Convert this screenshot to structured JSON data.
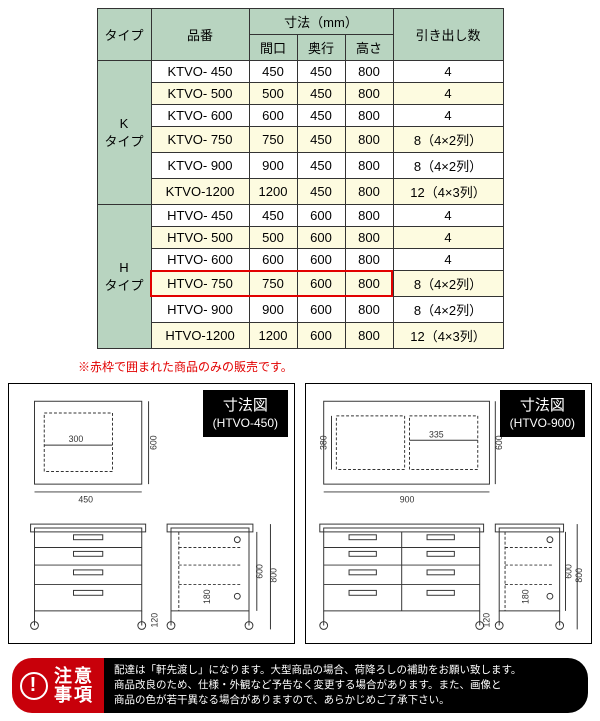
{
  "table": {
    "headers": {
      "type": "タイプ",
      "model": "品番",
      "dims": "寸法（mm）",
      "width": "間口",
      "depth": "奥行",
      "height": "高さ",
      "drawers": "引き出し数"
    },
    "groupA": {
      "label": "K\nタイプ"
    },
    "groupB": {
      "label": "H\nタイプ"
    },
    "rows": [
      {
        "model": "KTVO-  450",
        "w": "450",
        "d": "450",
        "h": "800",
        "drawers": "4"
      },
      {
        "model": "KTVO-  500",
        "w": "500",
        "d": "450",
        "h": "800",
        "drawers": "4"
      },
      {
        "model": "KTVO-  600",
        "w": "600",
        "d": "450",
        "h": "800",
        "drawers": "4"
      },
      {
        "model": "KTVO-  750",
        "w": "750",
        "d": "450",
        "h": "800",
        "drawers": "8（4×2列）"
      },
      {
        "model": "KTVO-  900",
        "w": "900",
        "d": "450",
        "h": "800",
        "drawers": "8（4×2列）"
      },
      {
        "model": "KTVO-1200",
        "w": "1200",
        "d": "450",
        "h": "800",
        "drawers": "12（4×3列）"
      },
      {
        "model": "HTVO-  450",
        "w": "450",
        "d": "600",
        "h": "800",
        "drawers": "4"
      },
      {
        "model": "HTVO-  500",
        "w": "500",
        "d": "600",
        "h": "800",
        "drawers": "4"
      },
      {
        "model": "HTVO-  600",
        "w": "600",
        "d": "600",
        "h": "800",
        "drawers": "4"
      },
      {
        "model": "HTVO-  750",
        "w": "750",
        "d": "600",
        "h": "800",
        "drawers": "8（4×2列）"
      },
      {
        "model": "HTVO-  900",
        "w": "900",
        "d": "600",
        "h": "800",
        "drawers": "8（4×2列）"
      },
      {
        "model": "HTVO-1200",
        "w": "1200",
        "d": "600",
        "h": "800",
        "drawers": "12（4×3列）"
      }
    ],
    "highlight_row_index": 9,
    "alt_row_color": "#fdfbe0",
    "header_bg": "#b8d4c0",
    "border_color": "#333333",
    "highlight_border": "#e20000"
  },
  "note": "※赤枠で囲まれた商品のみの販売です。",
  "diagramA": {
    "title": "寸法図",
    "subtitle": "(HTVO-450)",
    "top": {
      "w": "450",
      "inner": "300",
      "h": "600"
    },
    "front": {
      "h1": "600",
      "h2": "800",
      "foot": "120",
      "shelf": "180"
    }
  },
  "diagramB": {
    "title": "寸法図",
    "subtitle": "(HTVO-900)",
    "top": {
      "w": "900",
      "inner": "335",
      "h": "600",
      "inner_h": "380"
    },
    "front": {
      "h1": "600",
      "h2": "800",
      "foot": "120",
      "shelf": "180"
    }
  },
  "caution": {
    "label": "注意\n事項",
    "text": "配達は「軒先渡し」になります。大型商品の場合、荷降ろしの補助をお願い致します。\n商品改良のため、仕様・外観など予告なく変更する場合があります。また、画像と\n商品の色が若干異なる場合がありますので、あらかじめご了承下さい。"
  },
  "colors": {
    "red": "#e20000",
    "caution_red": "#c8000a",
    "black": "#000000"
  }
}
